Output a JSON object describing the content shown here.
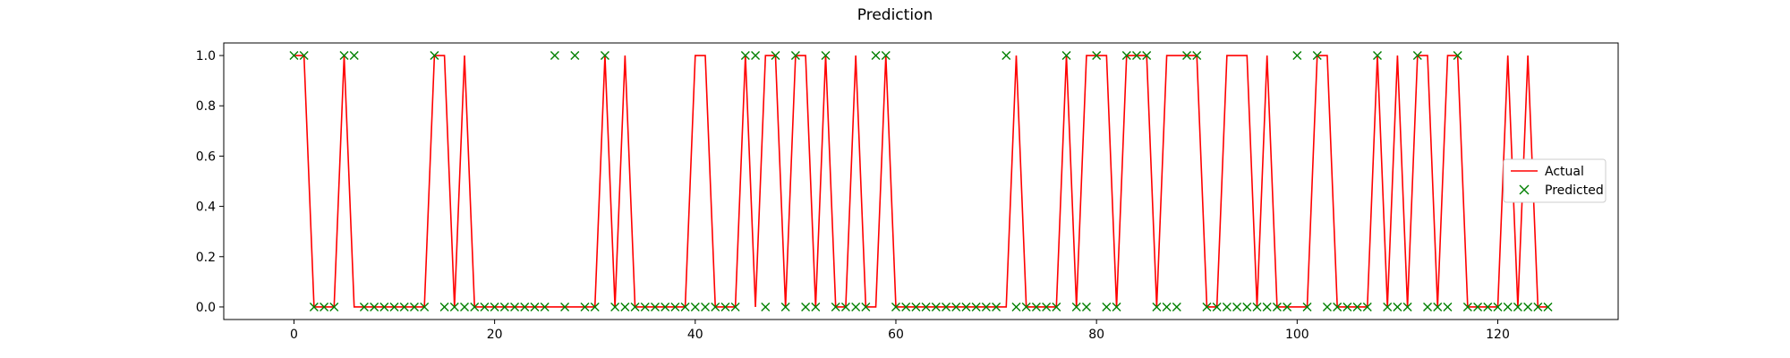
{
  "chart_data": {
    "type": "line",
    "title": "Prediction",
    "xlabel": "",
    "ylabel": "",
    "xlim": [
      -7,
      132
    ],
    "ylim": [
      -0.05,
      1.05
    ],
    "x_ticks": [
      0,
      20,
      40,
      60,
      80,
      100,
      120
    ],
    "y_ticks": [
      "0.0",
      "0.2",
      "0.4",
      "0.6",
      "0.8",
      "1.0"
    ],
    "legend_position": "center-right",
    "grid": false,
    "series": [
      {
        "name": "Actual",
        "kind": "line",
        "color": "#ff0000",
        "values": [
          1,
          1,
          0,
          0,
          0,
          1,
          0,
          0,
          0,
          0,
          0,
          0,
          0,
          0,
          1,
          1,
          0,
          1,
          0,
          0,
          0,
          0,
          0,
          0,
          0,
          0,
          0,
          0,
          0,
          0,
          0,
          1,
          0,
          1,
          0,
          0,
          0,
          0,
          0,
          0,
          1,
          1,
          0,
          0,
          0,
          1,
          0,
          1,
          1,
          0,
          1,
          1,
          0,
          1,
          0,
          0,
          1,
          0,
          0,
          1,
          0,
          0,
          0,
          0,
          0,
          0,
          0,
          0,
          0,
          0,
          0,
          0,
          1,
          0,
          0,
          0,
          0,
          1,
          0,
          1,
          1,
          1,
          0,
          1,
          1,
          1,
          0,
          1,
          1,
          1,
          1,
          0,
          0,
          1,
          1,
          1,
          0,
          1,
          0,
          0,
          0,
          0,
          1,
          1,
          0,
          0,
          0,
          0,
          1,
          0,
          1,
          0,
          1,
          1,
          0,
          1,
          1,
          0,
          0,
          0,
          0,
          1,
          0,
          1,
          0,
          0
        ]
      },
      {
        "name": "Predicted",
        "kind": "scatter",
        "marker": "x",
        "color": "#008000",
        "values": [
          1,
          1,
          0,
          0,
          0,
          1,
          1,
          0,
          0,
          0,
          0,
          0,
          0,
          0,
          1,
          0,
          0,
          0,
          0,
          0,
          0,
          0,
          0,
          0,
          0,
          0,
          1,
          0,
          1,
          0,
          0,
          1,
          0,
          0,
          0,
          0,
          0,
          0,
          0,
          0,
          0,
          0,
          0,
          0,
          0,
          1,
          1,
          0,
          1,
          0,
          1,
          0,
          0,
          1,
          0,
          0,
          0,
          0,
          1,
          1,
          0,
          0,
          0,
          0,
          0,
          0,
          0,
          0,
          0,
          0,
          0,
          1,
          0,
          0,
          0,
          0,
          0,
          1,
          0,
          0,
          1,
          0,
          0,
          1,
          1,
          1,
          0,
          0,
          0,
          1,
          1,
          0,
          0,
          0,
          0,
          0,
          0,
          0,
          0,
          0,
          1,
          0,
          1,
          0,
          0,
          0,
          0,
          0,
          1,
          0,
          0,
          0,
          1,
          0,
          0,
          0,
          1,
          0,
          0,
          0,
          0,
          0,
          0,
          0,
          0,
          0
        ]
      }
    ]
  }
}
